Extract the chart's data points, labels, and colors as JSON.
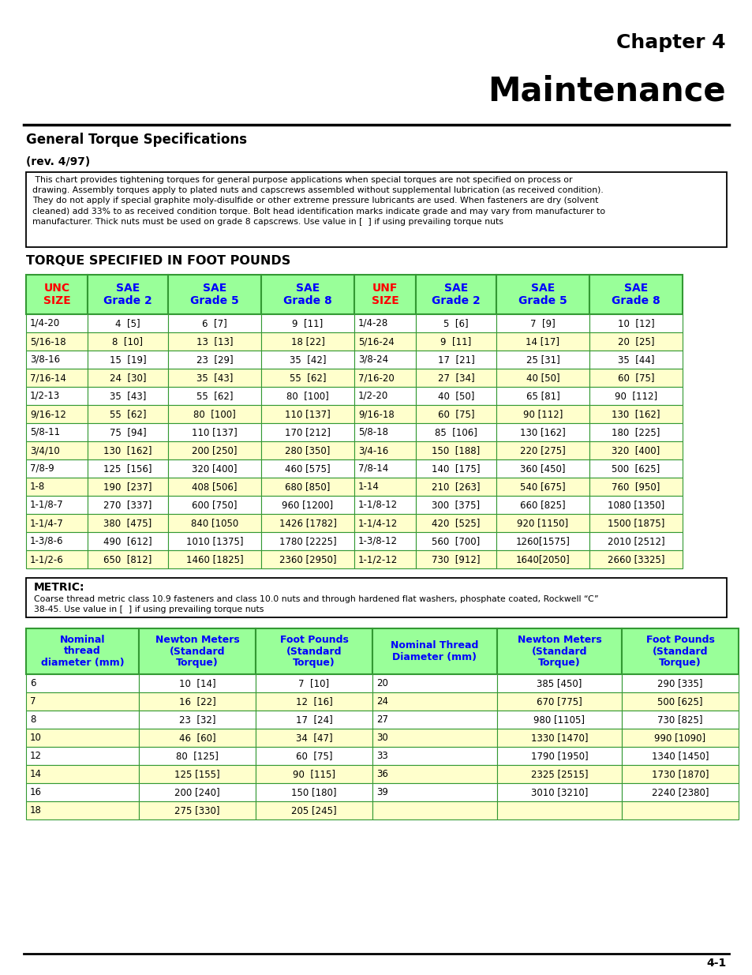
{
  "chapter": "Chapter 4",
  "title": "Maintenance",
  "section_title": "General Torque Specifications",
  "rev": "(rev. 4/97)",
  "intro_text": " This chart provides tightening torques for general purpose applications when special torques are not specified on process or\ndrawing. Assembly torques apply to plated nuts and capscrews assembled without supplemental lubrication (as received condition).\nThey do not apply if special graphite moly-disulfide or other extreme pressure lubricants are used. When fasteners are dry (solvent\ncleaned) add 33% to as received condition torque. Bolt head identification marks indicate grade and may vary from manufacturer to\nmanufacturer. Thick nuts must be used on grade 8 capscrews. Use value in [  ] if using prevailing torque nuts",
  "torque_title": "TORQUE SPECIFIED IN FOOT POUNDS",
  "metric_title": "METRIC:",
  "metric_text": "Coarse thread metric class 10.9 fasteners and class 10.0 nuts and through hardened flat washers, phosphate coated, Rockwell “C”\n38-45. Use value in [  ] if using prevailing torque nuts",
  "page_num": "4-1",
  "header_bg": "#99FF99",
  "row_bg_alt": "#FFFFCC",
  "row_bg_white": "#FFFFFF",
  "table_border": "#339933",
  "unc_headers": [
    "UNC\nSIZE",
    "SAE\nGrade 2",
    "SAE\nGrade 5",
    "SAE\nGrade 8",
    "UNF\nSIZE",
    "SAE\nGrade 2",
    "SAE\nGrade 5",
    "SAE\nGrade 8"
  ],
  "unc_header_colors": [
    "red",
    "blue",
    "blue",
    "blue",
    "red",
    "blue",
    "blue",
    "blue"
  ],
  "unc_rows": [
    [
      "1/4-20",
      "4  [5]",
      "6  [7]",
      "9  [11]",
      "1/4-28",
      "5  [6]",
      "7  [9]",
      "10  [12]"
    ],
    [
      "5/16-18",
      "8  [10]",
      "13  [13]",
      "18 [22]",
      "5/16-24",
      "9  [11]",
      "14 [17]",
      "20  [25]"
    ],
    [
      "3/8-16",
      "15  [19]",
      "23  [29]",
      "35  [42]",
      "3/8-24",
      "17  [21]",
      "25 [31]",
      "35  [44]"
    ],
    [
      "7/16-14",
      "24  [30]",
      "35  [43]",
      "55  [62]",
      "7/16-20",
      "27  [34]",
      "40 [50]",
      "60  [75]"
    ],
    [
      "1/2-13",
      "35  [43]",
      "55  [62]",
      "80  [100]",
      "1/2-20",
      "40  [50]",
      "65 [81]",
      "90  [112]"
    ],
    [
      "9/16-12",
      "55  [62]",
      "80  [100]",
      "110 [137]",
      "9/16-18",
      "60  [75]",
      "90 [112]",
      "130  [162]"
    ],
    [
      "5/8-11",
      "75  [94]",
      "110 [137]",
      "170 [212]",
      "5/8-18",
      "85  [106]",
      "130 [162]",
      "180  [225]"
    ],
    [
      "3/4/10",
      "130  [162]",
      "200 [250]",
      "280 [350]",
      "3/4-16",
      "150  [188]",
      "220 [275]",
      "320  [400]"
    ],
    [
      "7/8-9",
      "125  [156]",
      "320 [400]",
      "460 [575]",
      "7/8-14",
      "140  [175]",
      "360 [450]",
      "500  [625]"
    ],
    [
      "1-8",
      "190  [237]",
      "408 [506]",
      "680 [850]",
      "1-14",
      "210  [263]",
      "540 [675]",
      "760  [950]"
    ],
    [
      "1-1/8-7",
      "270  [337]",
      "600 [750]",
      "960 [1200]",
      "1-1/8-12",
      "300  [375]",
      "660 [825]",
      "1080 [1350]"
    ],
    [
      "1-1/4-7",
      "380  [475]",
      "840 [1050",
      "1426 [1782]",
      "1-1/4-12",
      "420  [525]",
      "920 [1150]",
      "1500 [1875]"
    ],
    [
      "1-3/8-6",
      "490  [612]",
      "1010 [1375]",
      "1780 [2225]",
      "1-3/8-12",
      "560  [700]",
      "1260[1575]",
      "2010 [2512]"
    ],
    [
      "1-1/2-6",
      "650  [812]",
      "1460 [1825]",
      "2360 [2950]",
      "1-1/2-12",
      "730  [912]",
      "1640[2050]",
      "2660 [3325]"
    ]
  ],
  "metric_headers": [
    "Nominal\nthread\ndiameter (mm)",
    "Newton Meters\n(Standard\nTorque)",
    "Foot Pounds\n(Standard\nTorque)",
    "Nominal Thread\nDiameter (mm)",
    "Newton Meters\n(Standard\nTorque)",
    "Foot Pounds\n(Standard\nTorque)"
  ],
  "metric_rows": [
    [
      "6",
      "10  [14]",
      "7  [10]",
      "20",
      "385 [450]",
      "290 [335]"
    ],
    [
      "7",
      "16  [22]",
      "12  [16]",
      "24",
      "670 [775]",
      "500 [625]"
    ],
    [
      "8",
      "23  [32]",
      "17  [24]",
      "27",
      "980 [1105]",
      "730 [825]"
    ],
    [
      "10",
      "46  [60]",
      "34  [47]",
      "30",
      "1330 [1470]",
      "990 [1090]"
    ],
    [
      "12",
      "80  [125]",
      "60  [75]",
      "33",
      "1790 [1950]",
      "1340 [1450]"
    ],
    [
      "14",
      "125 [155]",
      "90  [115]",
      "36",
      "2325 [2515]",
      "1730 [1870]"
    ],
    [
      "16",
      "200 [240]",
      "150 [180]",
      "39",
      "3010 [3210]",
      "2240 [2380]"
    ],
    [
      "18",
      "275 [330]",
      "205 [245]",
      "",
      "",
      ""
    ]
  ]
}
